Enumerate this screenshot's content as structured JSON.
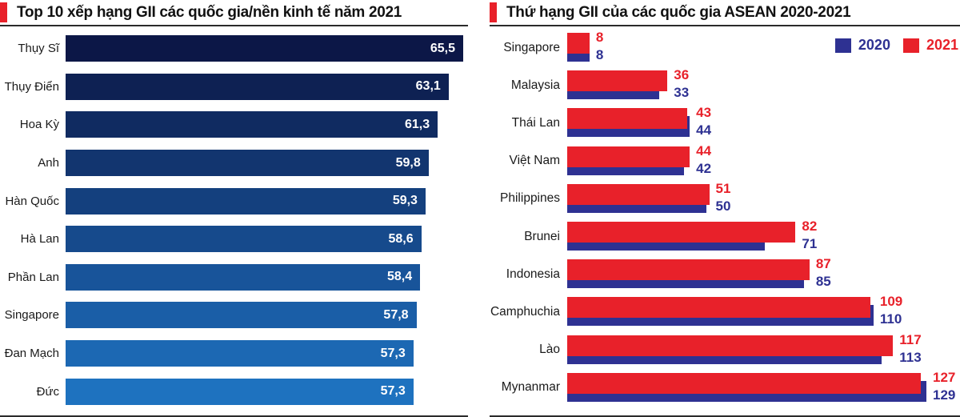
{
  "page": {
    "background": "#ffffff",
    "divider_color": "#2b2b2b"
  },
  "left_chart": {
    "title": "Top 10 xếp hạng GII các quốc gia/nền kinh tế năm 2021",
    "accent_color": "#e8212a",
    "chart_data": {
      "type": "bar",
      "orientation": "horizontal",
      "title": "Top 10 xếp hạng GII các quốc gia/nền kinh tế năm 2021",
      "categories": [
        "Thụy Sĩ",
        "Thụy Điển",
        "Hoa Kỳ",
        "Anh",
        "Hàn Quốc",
        "Hà Lan",
        "Phần Lan",
        "Singapore",
        "Đan Mạch",
        "Đức"
      ],
      "values": [
        65.5,
        63.1,
        61.3,
        59.8,
        59.3,
        58.6,
        58.4,
        57.8,
        57.3,
        57.3
      ],
      "value_labels": [
        "65,5",
        "63,1",
        "61,3",
        "59,8",
        "59,3",
        "58,6",
        "58,4",
        "57,8",
        "57,3",
        "57,3"
      ],
      "xlim": [
        0,
        65.5
      ],
      "bar_colors": [
        "#0c1747",
        "#0e2153",
        "#102b61",
        "#12356f",
        "#14407e",
        "#164a8c",
        "#18549a",
        "#1a5ea7",
        "#1c68b3",
        "#1e72bf"
      ],
      "value_label_color": "#ffffff",
      "grid": false,
      "legend": false
    }
  },
  "right_chart": {
    "title": "Thứ hạng GII của các quốc gia ASEAN 2020-2021",
    "accent_color": "#e8212a",
    "legend": [
      {
        "label": "2020",
        "color": "#2e3192"
      },
      {
        "label": "2021",
        "color": "#e8212a"
      }
    ],
    "chart_data": {
      "type": "bar",
      "orientation": "horizontal",
      "title": "Thứ hạng GII của các quốc gia ASEAN 2020-2021",
      "categories": [
        "Singapore",
        "Malaysia",
        "Thái Lan",
        "Việt Nam",
        "Philippines",
        "Brunei",
        "Indonesia",
        "Camphuchia",
        "Lào",
        "Mynanmar"
      ],
      "series": [
        {
          "name": "2020",
          "color": "#2e3192",
          "values": [
            8,
            33,
            44,
            42,
            50,
            71,
            85,
            110,
            113,
            129
          ]
        },
        {
          "name": "2021",
          "color": "#e8212a",
          "values": [
            8,
            36,
            43,
            44,
            51,
            82,
            87,
            109,
            117,
            127
          ]
        }
      ],
      "xlim": [
        0,
        129
      ],
      "grid": false,
      "legend_position": "top-right"
    }
  }
}
